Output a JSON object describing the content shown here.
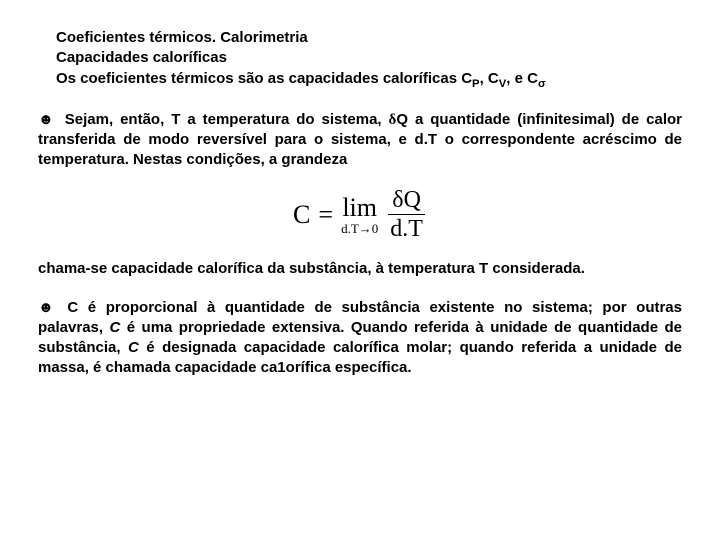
{
  "header": {
    "line1": "Coeficientes térmicos. Calorimetria",
    "line2": "Capacidades caloríficas",
    "line3_prefix": "Os coeficientes térmicos são as capacidades caloríficas  C",
    "sub1": "P",
    "mid1": ", C",
    "sub2": "V",
    "mid2": ", e C",
    "sub3": "σ"
  },
  "para1": {
    "bullet": "☻",
    "text_a": "  Sejam, então, T a temperatura do sistema, ",
    "delta": "δ",
    "text_b": "Q a quantidade (infinitesimal) de calor transferida de modo reversível para o sistema, e d.T o correspondente acréscimo de temperatura.  Nestas condições, a grandeza"
  },
  "formula": {
    "lhs": "C",
    "eq": "=",
    "lim": "lim",
    "lim_sub": "d.T→0",
    "num": "δQ",
    "den": "d.T"
  },
  "para2": {
    "text": "chama-se capacidade calorífica da substância, à temperatura T considerada."
  },
  "para3": {
    "bullet": "☻",
    "text_a": "  C é proporcional à quantidade de substância existente no sistema; por outras palavras, ",
    "italic": "C",
    "text_b": " é uma propriedade extensiva. Quando referida à unidade de quantidade de substância, ",
    "italic2": "C",
    "text_c": " é designada capacidade calorífica molar; quando referida a unidade de massa, é chamada  capacidade ca1orífica específica."
  },
  "colors": {
    "text": "#000000",
    "background": "#ffffff"
  }
}
